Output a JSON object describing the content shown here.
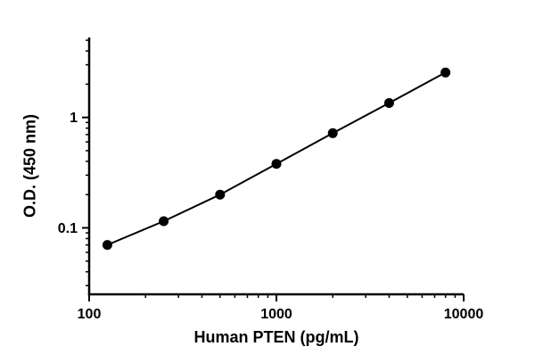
{
  "page": {
    "background_color": "#ffffff",
    "foreground_color": "#000000"
  },
  "chart_data": {
    "type": "line",
    "title": "",
    "xlabel": "Human PTEN (pg/mL)",
    "ylabel": "O.D. (450 nm)",
    "x_scale": "log",
    "y_scale": "log",
    "xlim": [
      100,
      10000
    ],
    "ylim": [
      0.025,
      5.3
    ],
    "x": [
      125,
      250,
      500,
      1000,
      2000,
      4000,
      8000
    ],
    "y": [
      0.07,
      0.115,
      0.2,
      0.38,
      0.72,
      1.35,
      2.55
    ],
    "x_ticks": {
      "values": [
        100,
        1000,
        10000
      ],
      "labels": [
        "100",
        "1000",
        "10000"
      ]
    },
    "y_ticks": {
      "values": [
        0.1,
        1
      ],
      "labels": [
        "0.1",
        "1"
      ]
    },
    "marker": "filled-circle",
    "marker_color": "#000000",
    "line_color": "#000000",
    "axis_color": "#000000",
    "grid": false,
    "legend": "none"
  }
}
